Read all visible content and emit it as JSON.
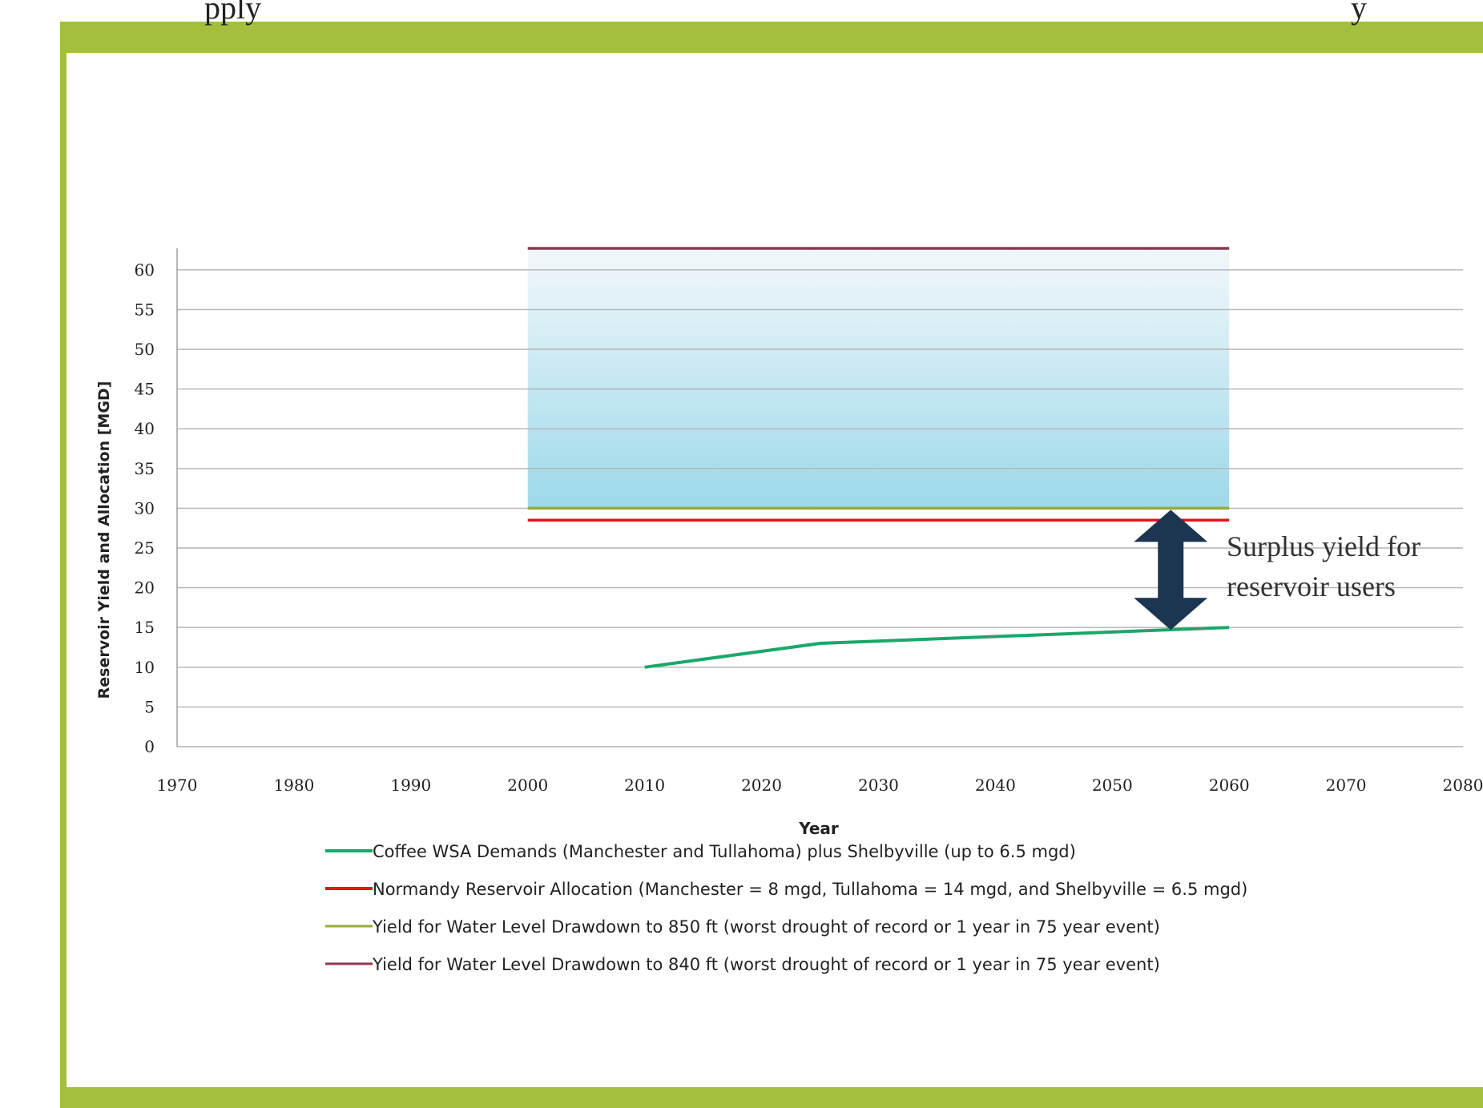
{
  "page": {
    "cut_heading": "pply",
    "cut_heading_right": "y"
  },
  "colors": {
    "frame": "#a3bf3b",
    "demand": "#1aa86a",
    "allocation": "#e0141c",
    "yield_850": "#9aaa3a",
    "yield_840": "#8c3a4a",
    "surplus_fill_top": "#f2f8fb",
    "surplus_fill_bottom": "#9dd9ea",
    "arrow": "#1c3550"
  },
  "chart_data": {
    "type": "line",
    "xlabel": "Year",
    "ylabel": "Reservoir Yield and Allocation [MGD]",
    "xlim": [
      1970,
      2080
    ],
    "ylim": [
      0,
      60
    ],
    "xticks": [
      1970,
      1980,
      1990,
      2000,
      2010,
      2020,
      2030,
      2040,
      2050,
      2060,
      2070,
      2080
    ],
    "yticks": [
      0,
      5,
      10,
      15,
      20,
      25,
      30,
      35,
      40,
      45,
      50,
      55,
      60
    ],
    "grid": true,
    "legend_position": "bottom",
    "series": [
      {
        "name": "Coffee WSA Demands (Manchester and Tullahoma) plus Shelbyville (up to 6.5 mgd)",
        "color_key": "demand",
        "x": [
          2010,
          2025,
          2060
        ],
        "y": [
          10,
          13,
          15
        ]
      },
      {
        "name": "Normandy Reservoir Allocation (Manchester = 8 mgd, Tullahoma = 14 mgd, and Shelbyville = 6.5 mgd)",
        "color_key": "allocation",
        "x": [
          2000,
          2060
        ],
        "y": [
          28.5,
          28.5
        ]
      },
      {
        "name": "Yield for Water Level Drawdown to 850 ft (worst drought of record or 1 year in 75 year event)",
        "color_key": "yield_850",
        "x": [
          2000,
          2060
        ],
        "y": [
          30,
          30
        ]
      },
      {
        "name": "Yield for Water Level Drawdown to 840 ft (worst drought of record or 1 year in 75 year event)",
        "color_key": "yield_840",
        "x": [
          2000,
          2060
        ],
        "y": [
          63,
          63
        ]
      }
    ],
    "shaded_region": {
      "x": [
        2000,
        2060
      ],
      "y": [
        30,
        63
      ]
    },
    "annotation": {
      "lines": [
        "Surplus yield for",
        "reservoir users"
      ],
      "arrow_x": 2055,
      "arrow_y": [
        15,
        30
      ]
    }
  }
}
